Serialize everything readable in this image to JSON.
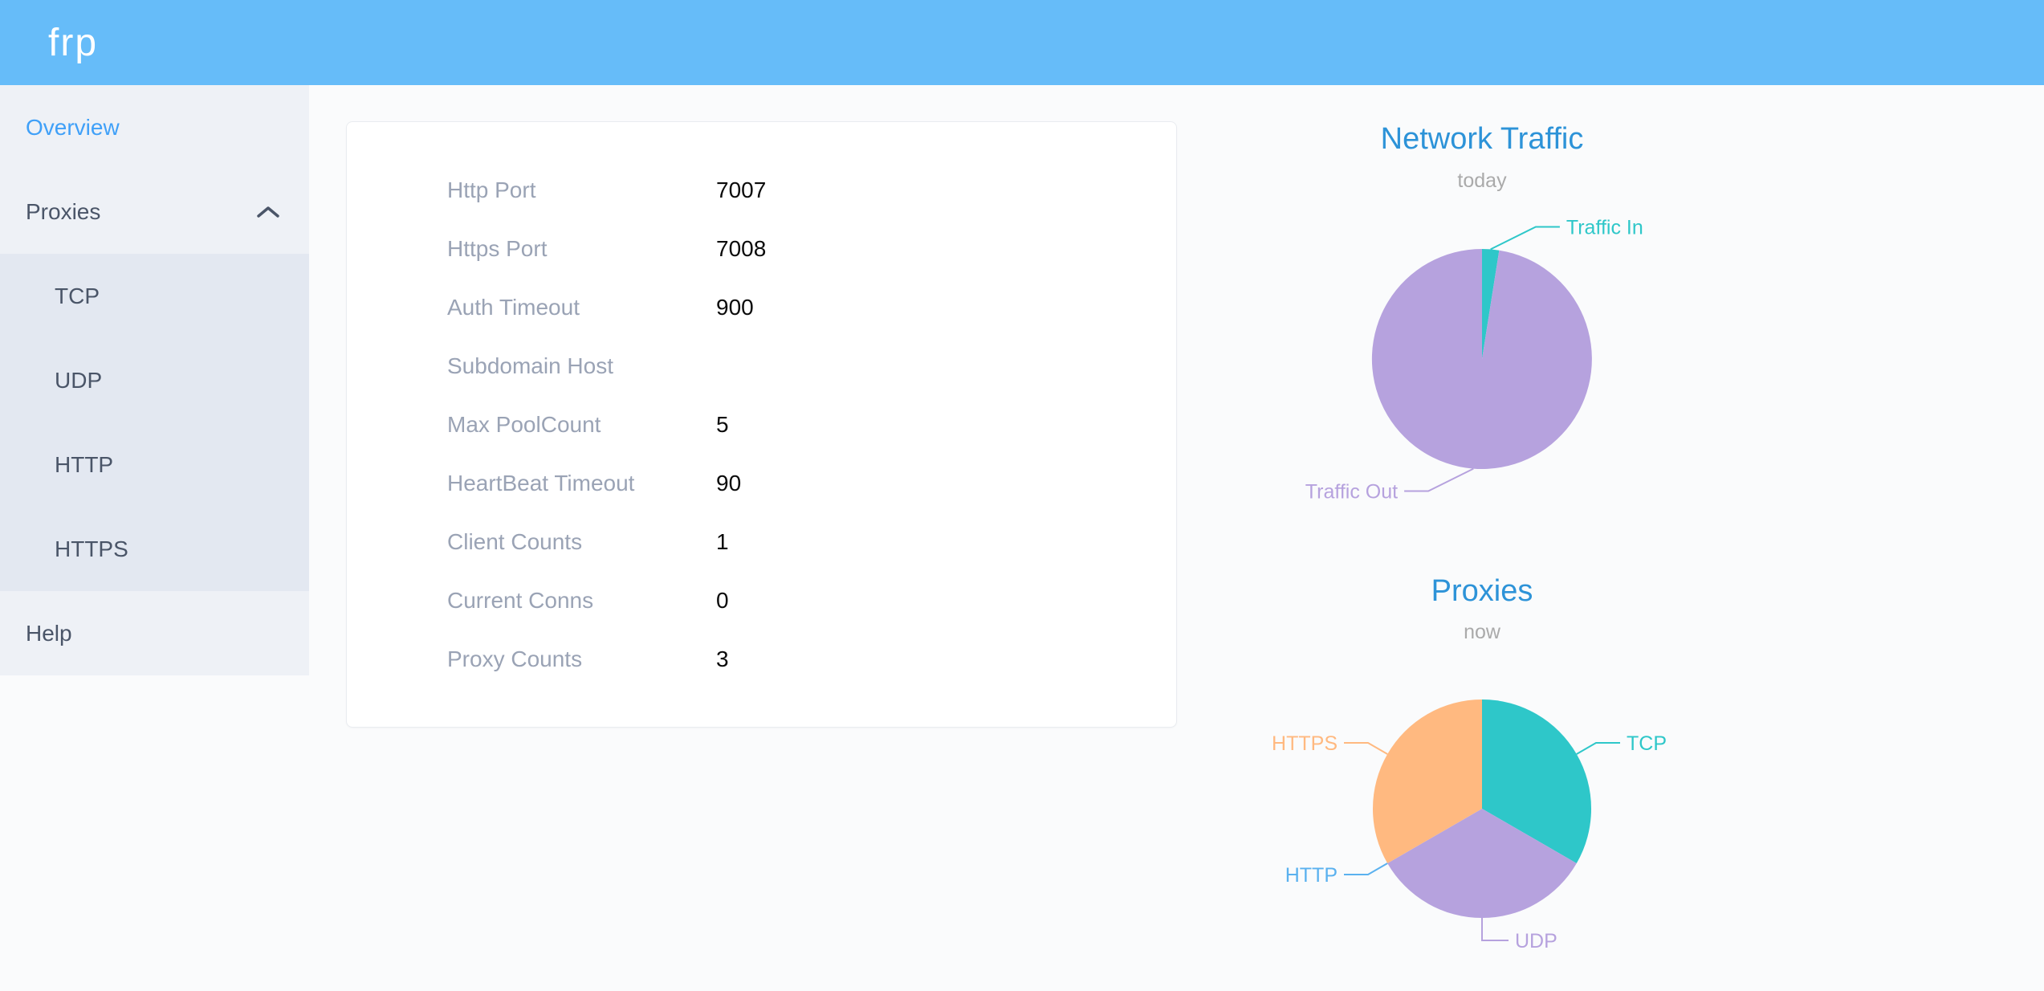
{
  "header": {
    "logo_text": "frp"
  },
  "sidebar": {
    "items": [
      {
        "label": "Overview",
        "active": true
      },
      {
        "label": "Proxies",
        "expanded": true,
        "children": [
          {
            "label": "TCP"
          },
          {
            "label": "UDP"
          },
          {
            "label": "HTTP"
          },
          {
            "label": "HTTPS"
          }
        ]
      },
      {
        "label": "Help"
      }
    ]
  },
  "server_info": {
    "rows": [
      {
        "label": "Http Port",
        "value": "7007"
      },
      {
        "label": "Https Port",
        "value": "7008"
      },
      {
        "label": "Auth Timeout",
        "value": "900"
      },
      {
        "label": "Subdomain Host",
        "value": ""
      },
      {
        "label": "Max PoolCount",
        "value": "5"
      },
      {
        "label": "HeartBeat Timeout",
        "value": "90"
      },
      {
        "label": "Client Counts",
        "value": "1"
      },
      {
        "label": "Current Conns",
        "value": "0"
      },
      {
        "label": "Proxy Counts",
        "value": "3"
      }
    ]
  },
  "chart_data": [
    {
      "type": "pie",
      "title": "Network Traffic",
      "subtitle": "today",
      "legend_position": "none",
      "labels_on": true,
      "series": [
        {
          "name": "Traffic In",
          "value": 2.5,
          "color": "#2ec7c9"
        },
        {
          "name": "Traffic Out",
          "value": 97.5,
          "color": "#b6a2de"
        }
      ],
      "value_unit": "percent of total, estimated from slice angles"
    },
    {
      "type": "pie",
      "title": "Proxies",
      "subtitle": "now",
      "legend_position": "none",
      "labels_on": true,
      "series": [
        {
          "name": "TCP",
          "value": 1,
          "color": "#2ec7c9"
        },
        {
          "name": "UDP",
          "value": 1,
          "color": "#b6a2de"
        },
        {
          "name": "HTTP",
          "value": 0,
          "color": "#5ab1ef"
        },
        {
          "name": "HTTPS",
          "value": 1,
          "color": "#ffb980"
        }
      ]
    }
  ],
  "colors": {
    "header_bg": "#66bcf9",
    "sidebar_bg": "#eef1f6",
    "submenu_bg": "#e3e8f1",
    "active_menu_text": "#3fa0f8",
    "menu_text": "#4a5568",
    "chart_title": "#2d93d8",
    "chart_subtitle": "#aaaaaa",
    "card_label": "#9aa3b5",
    "card_value": "#0b0b0b",
    "page_bg": "#fafbfc"
  }
}
